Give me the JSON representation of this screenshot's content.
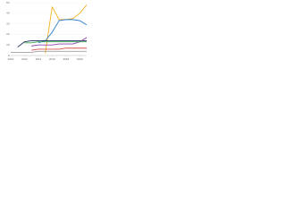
{
  "chart_data": {
    "type": "line",
    "x": [
      2010,
      2011,
      2012,
      2013,
      2014,
      2015,
      2016,
      2017,
      2018,
      2019,
      2020,
      2021
    ],
    "xlim": [
      2010,
      2021
    ],
    "xticks": [
      2010,
      2012,
      2014,
      2016,
      2018,
      2020
    ],
    "ylim": [
      0,
      50
    ],
    "yticks": [
      0,
      10,
      20,
      30,
      40,
      50
    ],
    "grid": true,
    "series": [
      {
        "color": "#f2b01e",
        "values": [
          null,
          null,
          null,
          null,
          null,
          2,
          46,
          34,
          34,
          35,
          40,
          48
        ]
      },
      {
        "color": "#2f7fd0",
        "values": [
          null,
          null,
          null,
          null,
          12,
          14,
          22,
          33,
          34,
          34,
          33,
          29
        ]
      },
      {
        "color": "#1d2a5b",
        "values": [
          null,
          8,
          13,
          14,
          14,
          14,
          14,
          14,
          14,
          14,
          14,
          14
        ]
      },
      {
        "color": "#8e44ad",
        "values": [
          null,
          null,
          null,
          9,
          10,
          10,
          10,
          11,
          11,
          11,
          13,
          17
        ]
      },
      {
        "color": "#d9534f",
        "values": [
          null,
          null,
          null,
          5,
          6,
          6,
          6,
          6,
          7,
          7,
          7,
          7
        ]
      },
      {
        "color": "#9e9e9e",
        "values": [
          3,
          3,
          3,
          3,
          4,
          4,
          4,
          4,
          4,
          4,
          4,
          4
        ]
      },
      {
        "color": "#3aa655",
        "values": [
          null,
          null,
          12,
          12,
          13,
          13,
          13,
          13,
          13,
          13,
          13,
          13
        ]
      }
    ]
  }
}
